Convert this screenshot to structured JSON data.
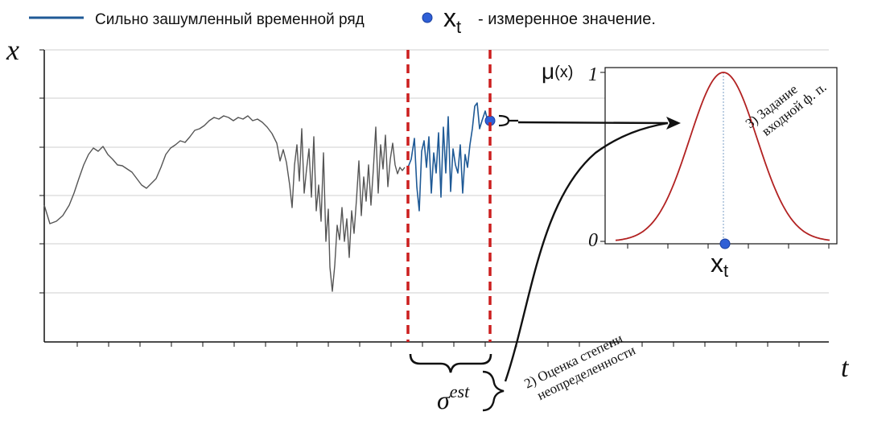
{
  "legend": {
    "series_label": "Сильно зашумленный временной ряд",
    "series_color": "#1f5a96",
    "point_symbol": "x",
    "point_subscript": "t",
    "point_label": "- измеренное значение.",
    "point_color": "#2f5fd6"
  },
  "main_axes": {
    "y_label": "x",
    "x_label": "t"
  },
  "window": {
    "sigma_symbol": "σ",
    "sigma_superscript": "est",
    "border_color": "#cc1f1f"
  },
  "membership_panel": {
    "y_label_mu": "μ",
    "y_label_arg": "(x)",
    "tick_top": "1",
    "tick_bottom": "0",
    "x_symbol": "x",
    "x_subscript": "t",
    "curve_color": "#b22222"
  },
  "annotations": {
    "step2_line1": "2) Оценка степени",
    "step2_line2": "неопределенности",
    "step3_line1": "3) Задание",
    "step3_line2": "входной ф. п."
  },
  "colors": {
    "grey_series": "#555555",
    "blue_series": "#1f5a96",
    "grid": "#cfcfcf",
    "arrow": "#000000"
  }
}
